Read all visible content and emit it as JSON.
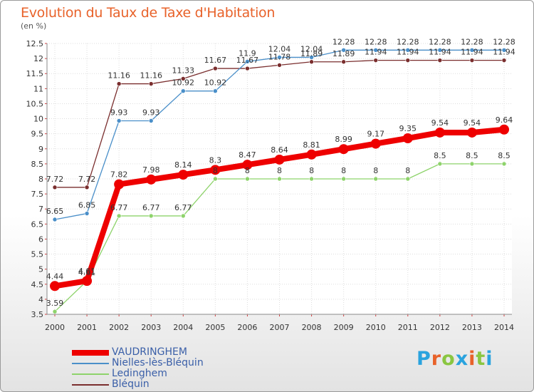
{
  "header": {
    "title": "Evolution du Taux de Taxe d'Habitation",
    "subtitle": "(en %)"
  },
  "logo": {
    "text": "Proxiti",
    "letter_colors": [
      "#2aa3de",
      "#e8622a",
      "#8ac641",
      "#2aa3de",
      "#e8622a",
      "#8ac641",
      "#2aa3de"
    ]
  },
  "chart_data": {
    "type": "line",
    "x": [
      2000,
      2001,
      2002,
      2003,
      2004,
      2005,
      2006,
      2007,
      2008,
      2009,
      2010,
      2011,
      2012,
      2013,
      2014
    ],
    "xlabel": "",
    "ylabel": "(en %)",
    "ylim": [
      3.5,
      12.5
    ],
    "yticks": [
      "3.5",
      "4",
      "4.5",
      "5",
      "5.5",
      "6",
      "6.5",
      "7",
      "7.5",
      "8",
      "8.5",
      "9",
      "9.5",
      "10",
      "10.5",
      "11",
      "11.5",
      "12",
      "12.5"
    ],
    "grid": true,
    "legend_position": "bottom-left",
    "series": [
      {
        "name": "VAUDRINGHEM",
        "color": "#ee0000",
        "values": [
          4.44,
          4.61,
          7.82,
          7.98,
          8.14,
          8.3,
          8.47,
          8.64,
          8.81,
          8.99,
          9.17,
          9.35,
          9.54,
          9.54,
          9.64
        ],
        "labels": [
          "4.44",
          "4.61",
          "7.82",
          "7.98",
          "8.14",
          "8.3",
          "8.47",
          "8.64",
          "8.81",
          "8.99",
          "9.17",
          "9.35",
          "9.54",
          "9.54",
          "9.64"
        ],
        "bold": true
      },
      {
        "name": "Nielles-lès-Bléquin",
        "color": "#4a8fc9",
        "values": [
          6.65,
          6.85,
          9.93,
          9.93,
          10.92,
          10.92,
          11.9,
          12.04,
          12.04,
          12.28,
          12.28,
          12.28,
          12.28,
          12.28,
          12.28
        ],
        "labels": [
          "6.65",
          "6.85",
          "9.93",
          "9.93",
          "10.92",
          "10.92",
          "11.9",
          "12.04",
          "12.04",
          "12.28",
          "12.28",
          "12.28",
          "12.28",
          "12.28",
          "12.28"
        ],
        "bold": false
      },
      {
        "name": "Ledinghem",
        "color": "#8ed36b",
        "values": [
          3.59,
          4.61,
          6.77,
          6.77,
          6.77,
          8,
          8,
          8,
          8,
          8,
          8,
          8,
          8.5,
          8.5,
          8.5
        ],
        "labels": [
          "3.59",
          "4.61",
          "6.77",
          "6.77",
          "6.77",
          "8",
          "8",
          "8",
          "8",
          "8",
          "8",
          "8",
          "8.5",
          "8.5",
          "8.5"
        ],
        "bold": false
      },
      {
        "name": "Bléquin",
        "color": "#7a2e2e",
        "values": [
          7.72,
          7.72,
          11.16,
          11.16,
          11.33,
          11.67,
          11.67,
          11.78,
          11.89,
          11.89,
          11.94,
          11.94,
          11.94,
          11.94,
          11.94
        ],
        "labels": [
          "7.72",
          "7.72",
          "11.16",
          "11.16",
          "11.33",
          "11.67",
          "11.67",
          "11.78",
          "11.89",
          "11.89",
          "11.94",
          "11.94",
          "11.94",
          "11.94",
          "11.94"
        ],
        "bold": false
      }
    ]
  }
}
